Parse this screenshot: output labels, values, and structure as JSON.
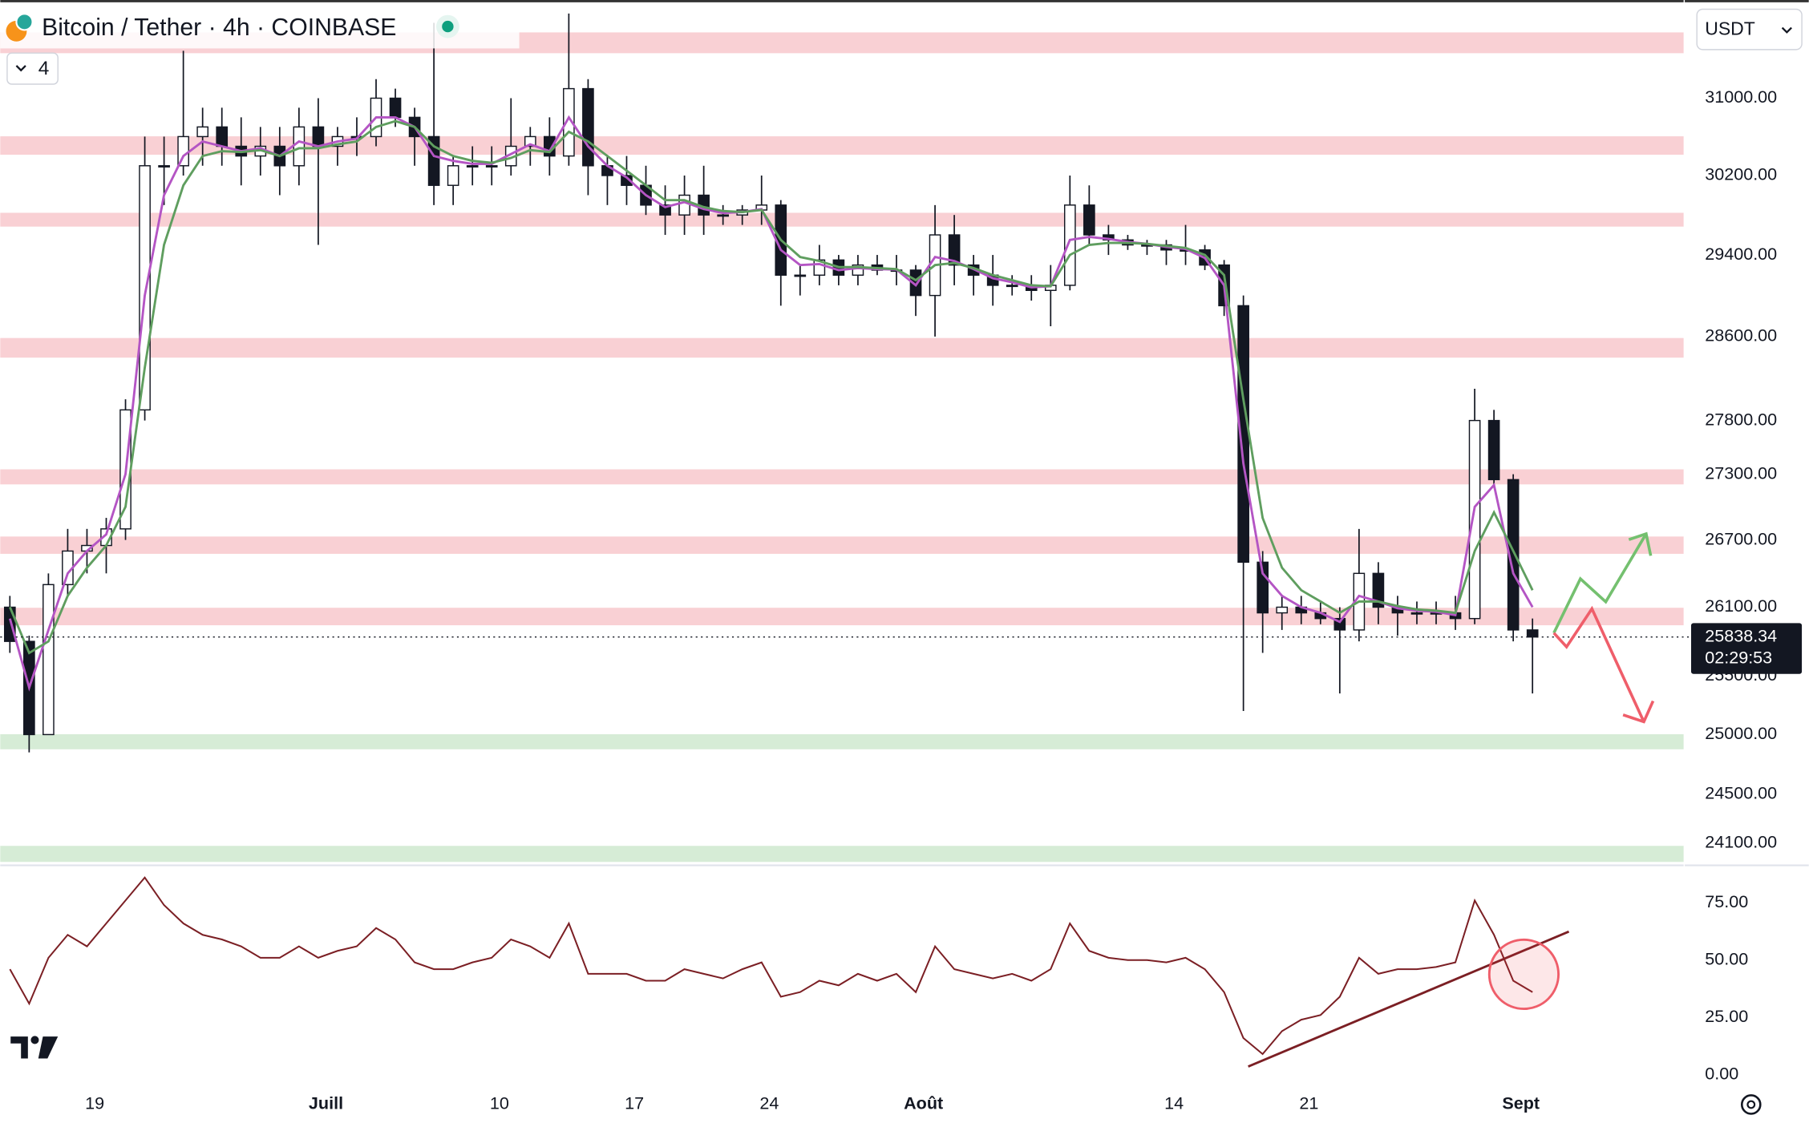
{
  "chart_data": [
    {
      "type": "candlestick",
      "title": "Bitcoin / Tether · 4h · COINBASE",
      "indicator_count": "4",
      "currency": "USDT",
      "countdown": "02:29:53",
      "last_price": 25838.34,
      "log_scale": true,
      "grid": false,
      "candle_color": "#131722",
      "xlim": [
        0,
        87.37
      ],
      "ylim": [
        23924,
        32046
      ],
      "xticks": [
        {
          "value": 4.9,
          "label": "19"
        },
        {
          "value": 16.9,
          "label": "Juill"
        },
        {
          "value": 25.9,
          "label": "10"
        },
        {
          "value": 32.9,
          "label": "17"
        },
        {
          "value": 39.9,
          "label": "24"
        },
        {
          "value": 47.9,
          "label": "Août"
        },
        {
          "value": 60.9,
          "label": "14"
        },
        {
          "value": 67.9,
          "label": "21"
        },
        {
          "value": 78.9,
          "label": "Sept"
        }
      ],
      "yticks": [
        {
          "value": 31000,
          "label": "31000.00"
        },
        {
          "value": 30200,
          "label": "30200.00"
        },
        {
          "value": 29400,
          "label": "29400.00"
        },
        {
          "value": 28600,
          "label": "28600.00"
        },
        {
          "value": 27800,
          "label": "27800.00"
        },
        {
          "value": 27300,
          "label": "27300.00"
        },
        {
          "value": 26700,
          "label": "26700.00"
        },
        {
          "value": 26100,
          "label": "26100.00"
        },
        {
          "value": 25500,
          "label": "25500.00"
        },
        {
          "value": 25000,
          "label": "25000.00"
        },
        {
          "value": 24500,
          "label": "24500.00"
        },
        {
          "value": 24100,
          "label": "24100.00"
        }
      ],
      "zones": [
        {
          "low": 31475,
          "high": 31697,
          "color": "#f9d0d4"
        },
        {
          "low": 30413,
          "high": 30603,
          "color": "#f9d0d4"
        },
        {
          "low": 29683,
          "high": 29822,
          "color": "#f9d0d4"
        },
        {
          "low": 28397,
          "high": 28586,
          "color": "#f9d0d4"
        },
        {
          "low": 27206,
          "high": 27345,
          "color": "#f9d0d4"
        },
        {
          "low": 26575,
          "high": 26731,
          "color": "#f9d0d4"
        },
        {
          "low": 25941,
          "high": 26095,
          "color": "#f9d0d4"
        },
        {
          "low": 24876,
          "high": 25003,
          "color": "#d6ecd6"
        },
        {
          "low": 23947,
          "high": 24077,
          "color": "#d6ecd6"
        }
      ],
      "x": [
        0.5,
        1.5,
        2.5,
        3.5,
        4.5,
        5.5,
        6.5,
        7.5,
        8.5,
        9.5,
        10.5,
        11.5,
        12.5,
        13.5,
        14.5,
        15.5,
        16.5,
        17.5,
        18.5,
        19.5,
        20.5,
        21.5,
        22.5,
        23.5,
        24.5,
        25.5,
        26.5,
        27.5,
        28.5,
        29.5,
        30.5,
        31.5,
        32.5,
        33.5,
        34.5,
        35.5,
        36.5,
        37.5,
        38.5,
        39.5,
        40.5,
        41.5,
        42.5,
        43.5,
        44.5,
        45.5,
        46.5,
        47.5,
        48.5,
        49.5,
        50.5,
        51.5,
        52.5,
        53.5,
        54.5,
        55.5,
        56.5,
        57.5,
        58.5,
        59.5,
        60.5,
        61.5,
        62.5,
        63.5,
        64.5,
        65.5,
        66.5,
        67.5,
        68.5,
        69.5,
        70.5,
        71.5,
        72.5,
        73.5,
        74.5,
        75.5,
        76.5,
        77.5,
        78.5,
        79.5
      ],
      "open": [
        26100,
        25800,
        25000,
        26300,
        26600,
        26650,
        26800,
        27900,
        30300,
        30300,
        30600,
        30700,
        30500,
        30400,
        30500,
        30300,
        30700,
        30500,
        30600,
        30600,
        31000,
        30800,
        30600,
        30100,
        30300,
        30300,
        30300,
        30500,
        30600,
        30400,
        31100,
        30300,
        30200,
        30100,
        29900,
        29800,
        30000,
        29800,
        29800,
        29850,
        29900,
        29200,
        29200,
        29350,
        29200,
        29300,
        29250,
        29250,
        29000,
        29600,
        29300,
        29200,
        29100,
        29100,
        29050,
        29100,
        29900,
        29600,
        29550,
        29500,
        29500,
        29450,
        29450,
        29300,
        28900,
        26500,
        26050,
        26100,
        26050,
        26000,
        25900,
        26400,
        26100,
        26050,
        26050,
        26050,
        26000,
        27800,
        27250,
        25900
      ],
      "high": [
        26200,
        25850,
        26400,
        26800,
        26800,
        26900,
        28000,
        30600,
        30600,
        31500,
        30900,
        30900,
        30800,
        30700,
        30700,
        30900,
        31000,
        30700,
        30800,
        31200,
        31100,
        30900,
        31800,
        30400,
        30500,
        30500,
        31000,
        30700,
        30800,
        31900,
        31200,
        30400,
        30400,
        30300,
        30100,
        30200,
        30300,
        29900,
        29900,
        30200,
        29950,
        29300,
        29500,
        29400,
        29400,
        29400,
        29400,
        29300,
        29900,
        29800,
        29400,
        29400,
        29200,
        29200,
        29300,
        30200,
        30100,
        29700,
        29600,
        29550,
        29550,
        29700,
        29500,
        29350,
        29000,
        26600,
        26200,
        26200,
        26150,
        26100,
        26800,
        26500,
        26200,
        26150,
        26150,
        26200,
        28100,
        27900,
        27300,
        26000
      ],
      "low": [
        25700,
        24850,
        25000,
        26200,
        26400,
        26400,
        26700,
        27800,
        29900,
        30200,
        30300,
        30300,
        30100,
        30200,
        30000,
        30100,
        29500,
        30300,
        30400,
        30500,
        30700,
        30300,
        29900,
        29900,
        30100,
        30100,
        30200,
        30300,
        30200,
        30300,
        30000,
        29900,
        29900,
        29800,
        29600,
        29600,
        29600,
        29700,
        29700,
        29700,
        28900,
        29000,
        29100,
        29100,
        29100,
        29200,
        29100,
        28800,
        28600,
        29100,
        29000,
        28900,
        29000,
        28950,
        28700,
        29050,
        29500,
        29400,
        29450,
        29400,
        29300,
        29300,
        29250,
        28800,
        25200,
        25700,
        25900,
        25950,
        25950,
        25350,
        25800,
        25950,
        25850,
        25950,
        25950,
        25900,
        25950,
        27200,
        25800,
        25350
      ],
      "close": [
        25800,
        25000,
        26300,
        26600,
        26650,
        26800,
        27900,
        30300,
        30300,
        30600,
        30700,
        30500,
        30400,
        30500,
        30300,
        30700,
        30500,
        30600,
        30600,
        31000,
        30800,
        30600,
        30100,
        30300,
        30300,
        30300,
        30500,
        30600,
        30400,
        31100,
        30300,
        30200,
        30100,
        29900,
        29800,
        30000,
        29800,
        29800,
        29850,
        29900,
        29200,
        29200,
        29350,
        29200,
        29300,
        29250,
        29250,
        29000,
        29600,
        29300,
        29200,
        29100,
        29100,
        29050,
        29100,
        29900,
        29600,
        29550,
        29500,
        29500,
        29450,
        29450,
        29300,
        28900,
        26500,
        26050,
        26100,
        26050,
        26000,
        25900,
        26400,
        26100,
        26050,
        26050,
        26050,
        26000,
        27800,
        27250,
        25900,
        25838.34
      ],
      "lines": [
        {
          "color": "#b455c4",
          "values": [
            26000,
            25400,
            25900,
            26400,
            26600,
            26750,
            27300,
            29000,
            30000,
            30400,
            30550,
            30500,
            30450,
            30480,
            30400,
            30550,
            30500,
            30550,
            30580,
            30800,
            30800,
            30700,
            30400,
            30350,
            30320,
            30320,
            30420,
            30520,
            30450,
            30800,
            30500,
            30300,
            30180,
            30000,
            29880,
            29930,
            29860,
            29820,
            29830,
            29860,
            29450,
            29300,
            29310,
            29250,
            29270,
            29260,
            29255,
            29100,
            29380,
            29340,
            29260,
            29170,
            29130,
            29080,
            29090,
            29550,
            29580,
            29560,
            29530,
            29510,
            29480,
            29460,
            29370,
            29100,
            27400,
            26400,
            26200,
            26100,
            26050,
            25970,
            26200,
            26150,
            26090,
            26070,
            26060,
            26030,
            27000,
            27200,
            26400,
            26100
          ]
        },
        {
          "color": "#5f9e5f",
          "values": [
            26100,
            25700,
            25800,
            26200,
            26450,
            26650,
            27000,
            28300,
            29500,
            30100,
            30400,
            30450,
            30440,
            30460,
            30400,
            30480,
            30480,
            30520,
            30550,
            30700,
            30760,
            30700,
            30500,
            30400,
            30350,
            30330,
            30380,
            30460,
            30440,
            30650,
            30550,
            30400,
            30250,
            30100,
            29950,
            29950,
            29880,
            29840,
            29830,
            29850,
            29550,
            29380,
            29340,
            29280,
            29280,
            29270,
            29260,
            29150,
            29300,
            29320,
            29270,
            29200,
            29150,
            29100,
            29090,
            29400,
            29500,
            29520,
            29520,
            29510,
            29490,
            29470,
            29400,
            29200,
            28000,
            26900,
            26450,
            26250,
            26150,
            26050,
            26150,
            26150,
            26110,
            26080,
            26070,
            26050,
            26600,
            26950,
            26600,
            26250
          ]
        }
      ]
    },
    {
      "type": "line",
      "color": "#7b1f24",
      "ylim": [
        -6.5,
        90.6
      ],
      "yticks": [
        {
          "value": 75,
          "label": "75.00"
        },
        {
          "value": 50,
          "label": "50.00"
        },
        {
          "value": 25,
          "label": "25.00"
        },
        {
          "value": 0,
          "label": "0.00"
        }
      ],
      "values": [
        46,
        31,
        51,
        61,
        56,
        66,
        76,
        86,
        74,
        66,
        61,
        59,
        56,
        51,
        51,
        56,
        51,
        54,
        56,
        64,
        59,
        49,
        46,
        46,
        49,
        51,
        59,
        56,
        51,
        66,
        44,
        44,
        44,
        41,
        41,
        46,
        44,
        42,
        46,
        49,
        34,
        36,
        41,
        39,
        44,
        41,
        44,
        36,
        56,
        46,
        44,
        42,
        44,
        41,
        46,
        66,
        54,
        51,
        50,
        50,
        49,
        51,
        46,
        36,
        16,
        9,
        19,
        24,
        26,
        34,
        51,
        44,
        46,
        46,
        47,
        49,
        76,
        61,
        41,
        36
      ]
    }
  ]
}
